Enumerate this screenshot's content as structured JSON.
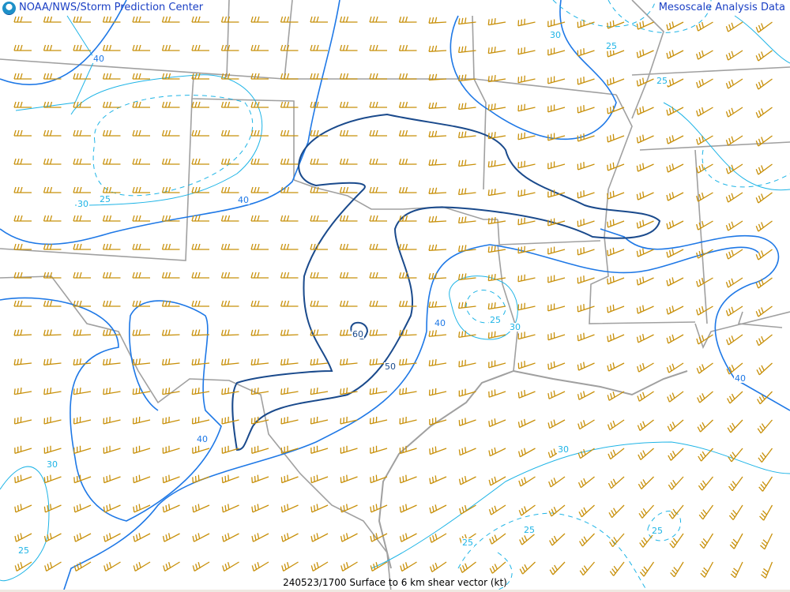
{
  "header": {
    "left_title": "NOAA/NWS/Storm Prediction Center",
    "right_title": "Mesoscale Analysis Data",
    "logo": "noaa-logo"
  },
  "caption": "240523/1700 Surface to 6 km shear vector (kt)",
  "colors": {
    "barbs": "#c8900a",
    "boundaries": "#a0a0a0",
    "contour_25_30": "#1eb4e6",
    "contour_40": "#1e78e6",
    "contour_50_60": "#1a4a8c"
  },
  "contour_labels": [
    {
      "value": "40"
    },
    {
      "value": "30"
    },
    {
      "value": "25"
    },
    {
      "value": "40"
    },
    {
      "value": "30"
    },
    {
      "value": "25"
    },
    {
      "value": "25"
    },
    {
      "value": "60"
    },
    {
      "value": "50"
    },
    {
      "value": "40"
    },
    {
      "value": "25"
    },
    {
      "value": "30"
    },
    {
      "value": "40"
    },
    {
      "value": "30"
    },
    {
      "value": "25"
    },
    {
      "value": "30"
    },
    {
      "value": "25"
    },
    {
      "value": "25"
    },
    {
      "value": "25"
    },
    {
      "value": "40"
    }
  ]
}
